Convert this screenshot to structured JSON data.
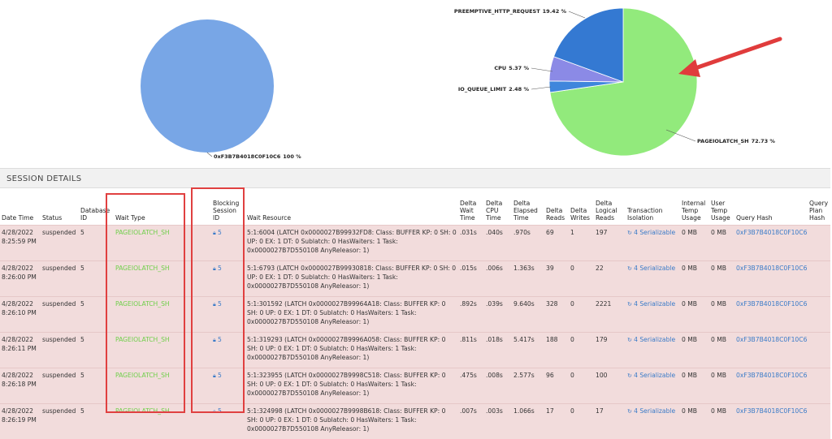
{
  "chart_data": [
    {
      "type": "pie",
      "categories": [
        "0xF3B7B4018C0F10C6"
      ],
      "values": [
        100
      ],
      "value_labels": [
        "100 %"
      ],
      "colors": [
        "#78a6e6"
      ]
    },
    {
      "type": "pie",
      "categories": [
        "PAGEIOLATCH_SH",
        "IO_QUEUE_LIMIT",
        "CPU",
        "PREEMPTIVE_HTTP_REQUEST"
      ],
      "values": [
        72.73,
        2.48,
        5.37,
        19.42
      ],
      "value_labels": [
        "72.73 %",
        "2.48 %",
        "5.37 %",
        "19.42 %"
      ],
      "colors": [
        "#92ea7c",
        "#3f86dc",
        "#8b8ae6",
        "#3479d2"
      ]
    }
  ],
  "section": {
    "title": "SESSION DETAILS"
  },
  "table": {
    "columns": [
      "Date Time",
      "Status",
      "Database ID",
      "Wait Type",
      "Blocking Session ID",
      "Wait Resource",
      "Delta Wait Time",
      "Delta CPU Time",
      "Delta Elapsed Time",
      "Delta Reads",
      "Delta Writes",
      "Delta Logical Reads",
      "Transaction Isolation",
      "Internal Temp Usage",
      "User Temp Usage",
      "Query Hash",
      "Query Plan Hash"
    ],
    "rows": [
      [
        "4/28/2022 8:25:59 PM",
        "suspended",
        "5",
        "PAGEIOLATCH_SH",
        "5",
        "5:1:6004 (LATCH 0x0000027B99932FD8: Class: BUFFER KP: 0 SH: 0 UP: 0 EX: 1 DT: 0 Sublatch: 0 HasWaiters: 1 Task: 0x0000027B7D550108 AnyReleasor: 1)",
        ".031s",
        ".040s",
        ".970s",
        "69",
        "1",
        "197",
        "4 Serializable",
        "0 MB",
        "0 MB",
        "0xF3B7B4018C0F10C6"
      ],
      [
        "4/28/2022 8:26:00 PM",
        "suspended",
        "5",
        "PAGEIOLATCH_SH",
        "5",
        "5:1:6793 (LATCH 0x0000027B99930818: Class: BUFFER KP: 0 SH: 0 UP: 0 EX: 1 DT: 0 Sublatch: 0 HasWaiters: 1 Task: 0x0000027B7D550108 AnyReleasor: 1)",
        ".015s",
        ".006s",
        "1.363s",
        "39",
        "0",
        "22",
        "4 Serializable",
        "0 MB",
        "0 MB",
        "0xF3B7B4018C0F10C6"
      ],
      [
        "4/28/2022 8:26:10 PM",
        "suspended",
        "5",
        "PAGEIOLATCH_SH",
        "5",
        "5:1:301592 (LATCH 0x0000027B99964A18: Class: BUFFER KP: 0 SH: 0 UP: 0 EX: 1 DT: 0 Sublatch: 0 HasWaiters: 1 Task: 0x0000027B7D550108 AnyReleasor: 1)",
        ".892s",
        ".039s",
        "9.640s",
        "328",
        "0",
        "2221",
        "4 Serializable",
        "0 MB",
        "0 MB",
        "0xF3B7B4018C0F10C6"
      ],
      [
        "4/28/2022 8:26:11 PM",
        "suspended",
        "5",
        "PAGEIOLATCH_SH",
        "5",
        "5:1:319293 (LATCH 0x0000027B9996A058: Class: BUFFER KP: 0 SH: 0 UP: 0 EX: 1 DT: 0 Sublatch: 0 HasWaiters: 1 Task: 0x0000027B7D550108 AnyReleasor: 1)",
        ".811s",
        ".018s",
        "5.417s",
        "188",
        "0",
        "179",
        "4 Serializable",
        "0 MB",
        "0 MB",
        "0xF3B7B4018C0F10C6"
      ],
      [
        "4/28/2022 8:26:18 PM",
        "suspended",
        "5",
        "PAGEIOLATCH_SH",
        "5",
        "5:1:323955 (LATCH 0x0000027B9998C518: Class: BUFFER KP: 0 SH: 0 UP: 0 EX: 1 DT: 0 Sublatch: 0 HasWaiters: 1 Task: 0x0000027B7D550108 AnyReleasor: 1)",
        ".475s",
        ".008s",
        "2.577s",
        "96",
        "0",
        "100",
        "4 Serializable",
        "0 MB",
        "0 MB",
        "0xF3B7B4018C0F10C6"
      ],
      [
        "4/28/2022 8:26:19 PM",
        "suspended",
        "5",
        "PAGEIOLATCH_SH",
        "5",
        "5:1:324998 (LATCH 0x0000027B9998B618: Class: BUFFER KP: 0 SH: 0 UP: 0 EX: 1 DT: 0 Sublatch: 0 HasWaiters: 1 Task: 0x0000027B7D550108 AnyReleasor: 1)",
        ".007s",
        ".003s",
        "1.066s",
        "17",
        "0",
        "17",
        "4 Serializable",
        "0 MB",
        "0 MB",
        "0xF3B7B4018C0F10C6"
      ]
    ]
  }
}
